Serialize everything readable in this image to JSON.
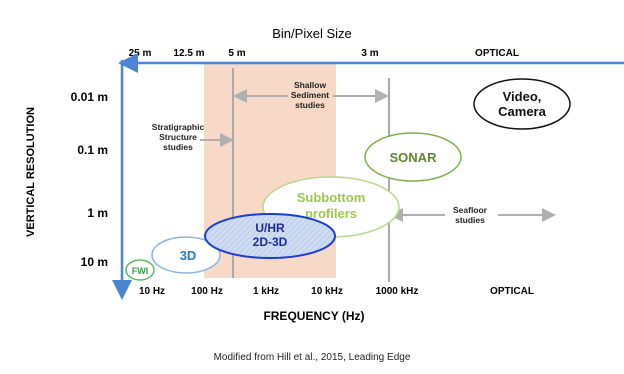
{
  "header": {
    "title": "Bin/Pixel Size"
  },
  "top_labels": [
    "25 m",
    "12.5 m",
    "5 m",
    "3 m",
    "OPTICAL"
  ],
  "y_axis": {
    "title": "VERTICAL RESOLUTION",
    "labels": [
      "0.01 m",
      "0.1 m",
      "1 m",
      "10 m"
    ]
  },
  "x_axis": {
    "title": "FREQUENCY (Hz)",
    "labels": [
      "10 Hz",
      "100 Hz",
      "1 kHz",
      "10 kHz",
      "1000 kHz",
      "OPTICAL"
    ]
  },
  "annotations": [
    {
      "lines": [
        "Stratigraphic",
        "Structure",
        "studies"
      ]
    },
    {
      "lines": [
        "Shallow",
        "Sediment",
        "studies"
      ]
    },
    {
      "lines": [
        "Seafloor",
        "studies"
      ]
    }
  ],
  "methods": [
    {
      "lines": [
        "Video,",
        "Camera"
      ]
    },
    {
      "lines": [
        "SONAR"
      ]
    },
    {
      "lines": [
        "Subbottom",
        "profilers"
      ]
    },
    {
      "lines": [
        "U/HR",
        "2D-3D"
      ]
    },
    {
      "lines": [
        "3D"
      ]
    },
    {
      "lines": [
        "FWI"
      ]
    }
  ],
  "caption": "Modified from Hill et al., 2015, Leading Edge"
}
